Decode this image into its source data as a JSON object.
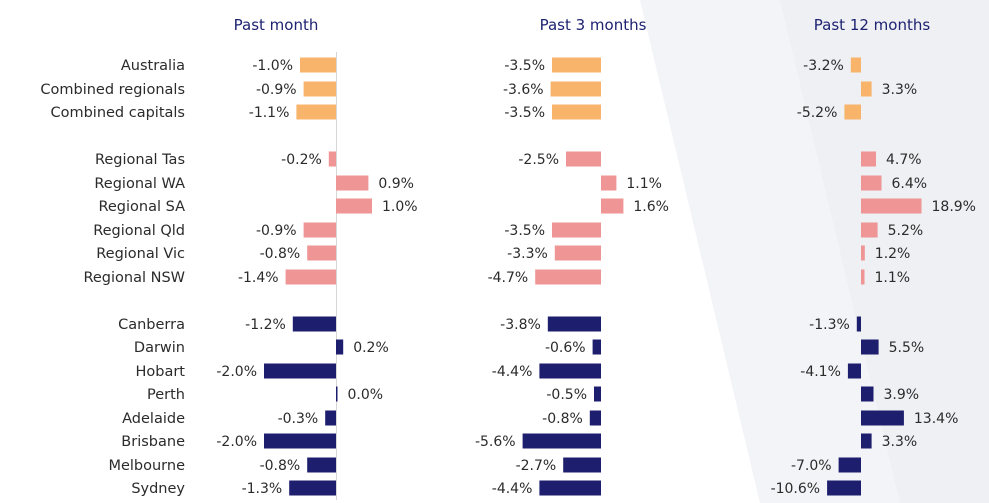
{
  "chart_data": {
    "type": "bar",
    "orientation": "horizontal",
    "colors": {
      "aggregates": "#f9b46c",
      "regionals": "#ef9595",
      "capitals": "#1e1e6e",
      "axis": "#d6d6d6",
      "title": "#1e2270"
    },
    "panels": [
      {
        "title": "Past month"
      },
      {
        "title": "Past 3 months"
      },
      {
        "title": "Past 12 months"
      }
    ],
    "groups": [
      {
        "colorKey": "aggregates",
        "rows": [
          {
            "label": "Australia",
            "values": [
              -1.0,
              -3.5,
              -3.2
            ],
            "text": [
              "-1.0%",
              "-3.5%",
              "-3.2%"
            ]
          },
          {
            "label": "Combined regionals",
            "values": [
              -0.9,
              -3.6,
              3.3
            ],
            "text": [
              "-0.9%",
              "-3.6%",
              "3.3%"
            ]
          },
          {
            "label": "Combined capitals",
            "values": [
              -1.1,
              -3.5,
              -5.2
            ],
            "text": [
              "-1.1%",
              "-3.5%",
              "-5.2%"
            ]
          }
        ]
      },
      {
        "colorKey": "regionals",
        "rows": [
          {
            "label": "Regional Tas",
            "values": [
              -0.2,
              -2.5,
              4.7
            ],
            "text": [
              "-0.2%",
              "-2.5%",
              "4.7%"
            ]
          },
          {
            "label": "Regional WA",
            "values": [
              0.9,
              1.1,
              6.4
            ],
            "text": [
              "0.9%",
              "1.1%",
              "6.4%"
            ]
          },
          {
            "label": "Regional SA",
            "values": [
              1.0,
              1.6,
              18.9
            ],
            "text": [
              "1.0%",
              "1.6%",
              "18.9%"
            ]
          },
          {
            "label": "Regional Qld",
            "values": [
              -0.9,
              -3.5,
              5.2
            ],
            "text": [
              "-0.9%",
              "-3.5%",
              "5.2%"
            ]
          },
          {
            "label": "Regional Vic",
            "values": [
              -0.8,
              -3.3,
              1.2
            ],
            "text": [
              "-0.8%",
              "-3.3%",
              "1.2%"
            ]
          },
          {
            "label": "Regional NSW",
            "values": [
              -1.4,
              -4.7,
              1.1
            ],
            "text": [
              "-1.4%",
              "-4.7%",
              "1.1%"
            ]
          }
        ]
      },
      {
        "colorKey": "capitals",
        "rows": [
          {
            "label": "Canberra",
            "values": [
              -1.2,
              -3.8,
              -1.3
            ],
            "text": [
              "-1.2%",
              "-3.8%",
              "-1.3%"
            ]
          },
          {
            "label": "Darwin",
            "values": [
              0.2,
              -0.6,
              5.5
            ],
            "text": [
              "0.2%",
              "-0.6%",
              "5.5%"
            ]
          },
          {
            "label": "Hobart",
            "values": [
              -2.0,
              -4.4,
              -4.1
            ],
            "text": [
              "-2.0%",
              "-4.4%",
              "-4.1%"
            ]
          },
          {
            "label": "Perth",
            "values": [
              0.0,
              -0.5,
              3.9
            ],
            "text": [
              "0.0%",
              "-0.5%",
              "3.9%"
            ]
          },
          {
            "label": "Adelaide",
            "values": [
              -0.3,
              -0.8,
              13.4
            ],
            "text": [
              "-0.3%",
              "-0.8%",
              "13.4%"
            ]
          },
          {
            "label": "Brisbane",
            "values": [
              -2.0,
              -5.6,
              3.3
            ],
            "text": [
              "-2.0%",
              "-5.6%",
              "3.3%"
            ]
          },
          {
            "label": "Melbourne",
            "values": [
              -0.8,
              -2.7,
              -7.0
            ],
            "text": [
              "-0.8%",
              "-2.7%",
              "-7.0%"
            ]
          },
          {
            "label": "Sydney",
            "values": [
              -1.3,
              -4.4,
              -10.6
            ],
            "text": [
              "-1.3%",
              "-4.4%",
              "-10.6%"
            ]
          }
        ]
      }
    ]
  }
}
